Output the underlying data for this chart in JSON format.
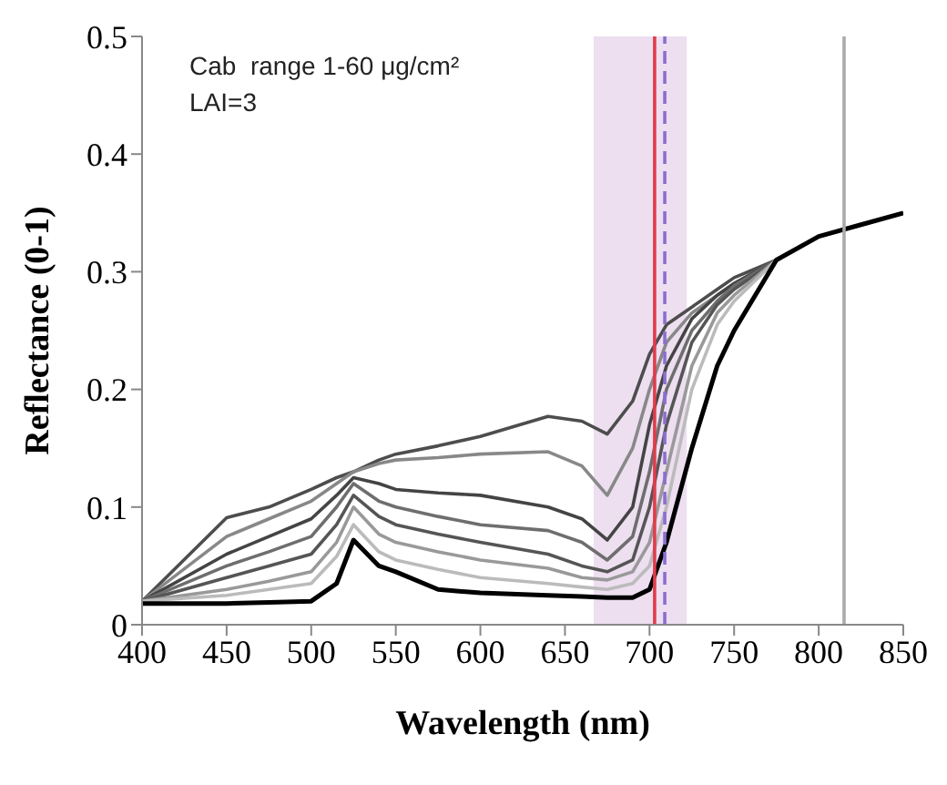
{
  "chart_data": {
    "type": "line",
    "xlabel": "Wavelength (nm)",
    "ylabel": "Reflectance (0-1)",
    "annotations": [
      "Cab  range 1-60 μg/cm²",
      "LAI=3"
    ],
    "x": [
      400,
      450,
      475,
      500,
      515,
      525,
      540,
      550,
      575,
      600,
      640,
      660,
      675,
      690,
      700,
      710,
      725,
      740,
      750,
      775,
      800,
      825,
      850
    ],
    "series": [
      {
        "color": "#4d4d4d",
        "values": [
          0.02,
          0.091,
          0.1,
          0.115,
          0.125,
          0.13,
          0.14,
          0.145,
          0.152,
          0.16,
          0.177,
          0.173,
          0.162,
          0.19,
          0.23,
          0.255,
          0.27,
          0.285,
          0.295,
          0.31,
          null,
          null,
          null
        ]
      },
      {
        "color": "#888888",
        "values": [
          0.02,
          0.075,
          0.09,
          0.105,
          0.12,
          0.13,
          0.137,
          0.14,
          0.142,
          0.145,
          0.147,
          0.135,
          0.11,
          0.15,
          0.2,
          0.24,
          0.265,
          0.28,
          0.29,
          0.31,
          null,
          null,
          null
        ]
      },
      {
        "color": "#444444",
        "values": [
          0.02,
          0.06,
          0.075,
          0.09,
          0.11,
          0.125,
          0.12,
          0.115,
          0.112,
          0.11,
          0.1,
          0.09,
          0.072,
          0.1,
          0.17,
          0.22,
          0.26,
          0.28,
          0.29,
          0.31,
          null,
          null,
          null
        ]
      },
      {
        "color": "#6e6e6e",
        "values": [
          0.02,
          0.05,
          0.062,
          0.075,
          0.1,
          0.12,
          0.105,
          0.1,
          0.092,
          0.085,
          0.08,
          0.07,
          0.055,
          0.075,
          0.13,
          0.2,
          0.25,
          0.275,
          0.288,
          0.31,
          null,
          null,
          null
        ]
      },
      {
        "color": "#555555",
        "values": [
          0.02,
          0.04,
          0.05,
          0.06,
          0.085,
          0.11,
          0.092,
          0.085,
          0.077,
          0.07,
          0.06,
          0.05,
          0.045,
          0.055,
          0.1,
          0.17,
          0.24,
          0.272,
          0.285,
          0.31,
          null,
          null,
          null
        ]
      },
      {
        "color": "#999999",
        "values": [
          0.02,
          0.03,
          0.037,
          0.045,
          0.07,
          0.1,
          0.077,
          0.07,
          0.062,
          0.055,
          0.048,
          0.04,
          0.038,
          0.045,
          0.07,
          0.13,
          0.22,
          0.265,
          0.28,
          0.31,
          null,
          null,
          null
        ]
      },
      {
        "color": "#bbbbbb",
        "values": [
          0.02,
          0.025,
          0.03,
          0.035,
          0.058,
          0.085,
          0.062,
          0.055,
          0.047,
          0.04,
          0.035,
          0.032,
          0.03,
          0.035,
          0.05,
          0.1,
          0.2,
          0.255,
          0.275,
          0.31,
          null,
          null,
          null
        ]
      },
      {
        "color": "#000000",
        "values": [
          0.018,
          0.018,
          0.019,
          0.02,
          0.035,
          0.072,
          0.05,
          0.045,
          0.03,
          0.027,
          0.025,
          0.024,
          0.023,
          0.023,
          0.03,
          0.07,
          0.15,
          0.22,
          0.25,
          0.31,
          0.33,
          0.34,
          0.35
        ]
      }
    ],
    "xlim": [
      400,
      850
    ],
    "xticks": [
      400,
      450,
      500,
      550,
      600,
      650,
      700,
      750,
      800,
      850
    ],
    "ylim": [
      0,
      0.5
    ],
    "yticks": [
      0,
      0.1,
      0.2,
      0.3,
      0.4,
      0.5
    ],
    "ref_lines": [
      {
        "axis": "x",
        "value": 703,
        "color": "#e03c4a",
        "line_style": "solid"
      },
      {
        "axis": "x",
        "value": 709,
        "color": "#8a6fd0",
        "line_style": "dashed"
      },
      {
        "axis": "x",
        "value": 815,
        "color": "#aaaaaa",
        "line_style": "solid"
      }
    ],
    "bands": [
      {
        "axis": "x",
        "from": 667,
        "to": 722,
        "color": "#e8d6ec"
      }
    ],
    "grid": false,
    "legend": false
  }
}
